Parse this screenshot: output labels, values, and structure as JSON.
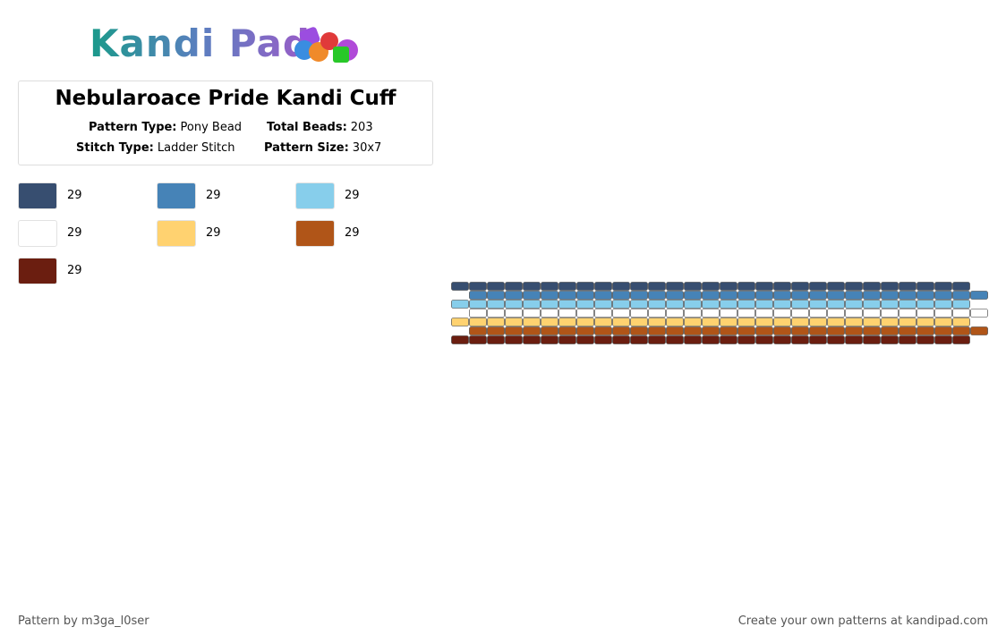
{
  "logo": "Kandi Pad",
  "title": "Nebularoace Pride Kandi Cuff",
  "meta": {
    "pattern_type": {
      "label": "Pattern Type:",
      "value": "Pony Bead"
    },
    "total_beads": {
      "label": "Total Beads:",
      "value": "203"
    },
    "stitch_type": {
      "label": "Stitch Type:",
      "value": "Ladder Stitch"
    },
    "pattern_size": {
      "label": "Pattern Size:",
      "value": "30x7"
    }
  },
  "legend": [
    {
      "color": "#374e70",
      "count": "29"
    },
    {
      "color": "#4683b7",
      "count": "29"
    },
    {
      "color": "#87ceeb",
      "count": "29"
    },
    {
      "color": "#ffffff",
      "count": "29"
    },
    {
      "color": "#ffd270",
      "count": "29"
    },
    {
      "color": "#b05518",
      "count": "29"
    },
    {
      "color": "#6b1e10",
      "count": "29"
    }
  ],
  "footer": {
    "author": "Pattern by m3ga_l0ser",
    "site": "Create your own patterns at kandipad.com"
  }
}
